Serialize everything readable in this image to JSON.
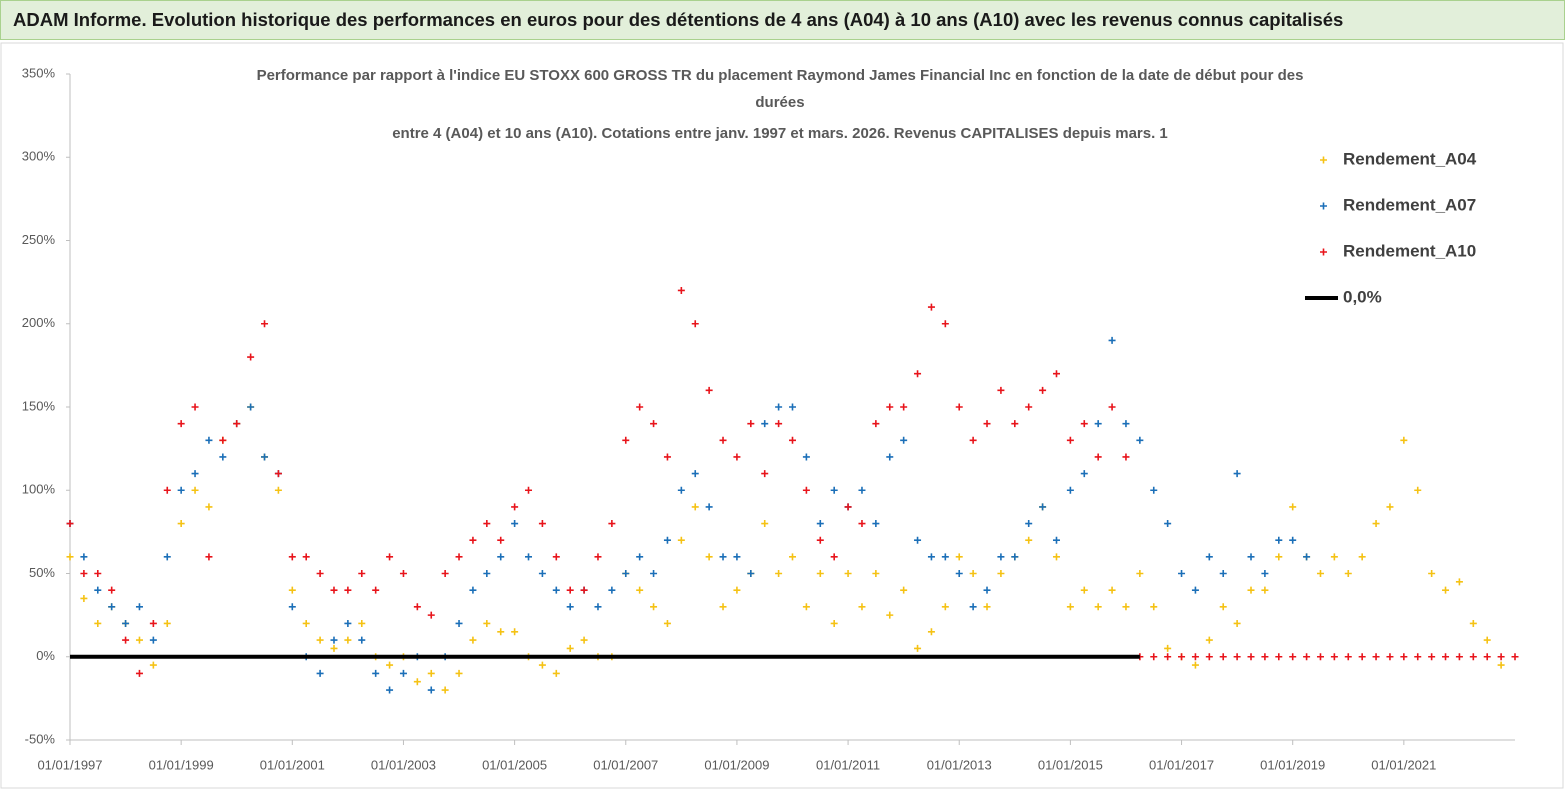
{
  "page_title": "ADAM Informe. Evolution historique des performances en euros pour des détentions de 4 ans (A04) à 10 ans (A10) avec les revenus connus capitalisés",
  "chart_data": {
    "type": "scatter",
    "title": [
      "Performance par rapport à l'indice EU STOXX 600 GROSS TR  du placement Raymond James Financial Inc en fonction de la date de début pour des",
      "durées",
      "entre 4 (A04) et 10 ans (A10).  Cotations entre janv. 1997 et mars. 2026. Revenus CAPITALISES depuis mars. 1"
    ],
    "xlim": [
      "01/01/1997",
      "01/01/2023"
    ],
    "xticks": [
      "01/01/1997",
      "01/01/1999",
      "01/01/2001",
      "01/01/2003",
      "01/01/2005",
      "01/01/2007",
      "01/01/2009",
      "01/01/2011",
      "01/01/2013",
      "01/01/2015",
      "01/01/2017",
      "01/01/2019",
      "01/01/2021"
    ],
    "ylim": [
      -50,
      350
    ],
    "yticks": [
      {
        "value": -50,
        "label": "-50%"
      },
      {
        "value": 0,
        "label": "0%"
      },
      {
        "value": 50,
        "label": "50%"
      },
      {
        "value": 100,
        "label": "100%"
      },
      {
        "value": 150,
        "label": "150%"
      },
      {
        "value": 200,
        "label": "200%"
      },
      {
        "value": 250,
        "label": "250%"
      },
      {
        "value": 300,
        "label": "300%"
      },
      {
        "value": 350,
        "label": "350%"
      }
    ],
    "series": [
      {
        "name": "Rendement_A04",
        "color": "#f5c214",
        "marker": "+",
        "x": [
          "01/01/1997",
          "01/04/1997",
          "01/07/1997",
          "01/10/1997",
          "01/01/1998",
          "01/04/1998",
          "01/07/1998",
          "01/10/1998",
          "01/01/1999",
          "01/04/1999",
          "01/07/1999",
          "01/10/1999",
          "01/01/2000",
          "01/04/2000",
          "01/07/2000",
          "01/10/2000",
          "01/01/2001",
          "01/04/2001",
          "01/07/2001",
          "01/10/2001",
          "01/01/2002",
          "01/04/2002",
          "01/07/2002",
          "01/10/2002",
          "01/01/2003",
          "01/04/2003",
          "01/07/2003",
          "01/10/2003",
          "01/01/2004",
          "01/04/2004",
          "01/07/2004",
          "01/10/2004",
          "01/01/2005",
          "01/04/2005",
          "01/07/2005",
          "01/10/2005",
          "01/01/2006",
          "01/04/2006",
          "01/07/2006",
          "01/10/2006",
          "01/01/2007",
          "01/04/2007",
          "01/07/2007",
          "01/10/2007",
          "01/01/2008",
          "01/04/2008",
          "01/07/2008",
          "01/10/2008",
          "01/01/2009",
          "01/04/2009",
          "01/07/2009",
          "01/10/2009",
          "01/01/2010",
          "01/04/2010",
          "01/07/2010",
          "01/10/2010",
          "01/01/2011",
          "01/04/2011",
          "01/07/2011",
          "01/10/2011",
          "01/01/2012",
          "01/04/2012",
          "01/07/2012",
          "01/10/2012",
          "01/01/2013",
          "01/04/2013",
          "01/07/2013",
          "01/10/2013",
          "01/01/2014",
          "01/04/2014",
          "01/07/2014",
          "01/10/2014",
          "01/01/2015",
          "01/04/2015",
          "01/07/2015",
          "01/10/2015",
          "01/01/2016",
          "01/04/2016",
          "01/07/2016",
          "01/10/2016",
          "01/01/2017",
          "01/04/2017",
          "01/07/2017",
          "01/10/2017",
          "01/01/2018",
          "01/04/2018",
          "01/07/2018",
          "01/10/2018",
          "01/01/2019",
          "01/04/2019",
          "01/07/2019",
          "01/10/2019",
          "01/01/2020",
          "01/04/2020",
          "01/07/2020",
          "01/10/2020",
          "01/01/2021",
          "01/04/2021",
          "01/07/2021",
          "01/10/2021",
          "01/01/2022",
          "01/04/2022",
          "01/07/2022",
          "01/10/2022"
        ],
        "values": [
          60,
          35,
          20,
          30,
          20,
          10,
          -5,
          20,
          80,
          100,
          90,
          130,
          140,
          150,
          120,
          100,
          40,
          20,
          10,
          5,
          10,
          20,
          0,
          -5,
          0,
          -15,
          -10,
          -20,
          -10,
          10,
          20,
          15,
          15,
          0,
          -5,
          -10,
          5,
          10,
          0,
          0,
          50,
          40,
          30,
          20,
          70,
          90,
          60,
          30,
          40,
          50,
          80,
          50,
          60,
          30,
          50,
          20,
          50,
          30,
          50,
          25,
          40,
          5,
          15,
          30,
          60,
          50,
          30,
          50,
          60,
          70,
          90,
          60,
          30,
          40,
          30,
          40,
          30,
          50,
          30,
          5,
          0,
          -5,
          10,
          30,
          20,
          40,
          40,
          60,
          90,
          60,
          50,
          60,
          50,
          60,
          80,
          90,
          130,
          100,
          50,
          40,
          45,
          20,
          10,
          -5
        ]
      },
      {
        "name": "Rendement_A07",
        "color": "#1b6fb8",
        "marker": "+",
        "x": [
          "01/01/1997",
          "01/04/1997",
          "01/07/1997",
          "01/10/1997",
          "01/01/1998",
          "01/04/1998",
          "01/07/1998",
          "01/10/1998",
          "01/01/1999",
          "01/04/1999",
          "01/07/1999",
          "01/10/1999",
          "01/01/2000",
          "01/04/2000",
          "01/07/2000",
          "01/10/2000",
          "01/01/2001",
          "01/04/2001",
          "01/07/2001",
          "01/10/2001",
          "01/01/2002",
          "01/04/2002",
          "01/07/2002",
          "01/10/2002",
          "01/01/2003",
          "01/04/2003",
          "01/07/2003",
          "01/10/2003",
          "01/01/2004",
          "01/04/2004",
          "01/07/2004",
          "01/10/2004",
          "01/01/2005",
          "01/04/2005",
          "01/07/2005",
          "01/10/2005",
          "01/01/2006",
          "01/04/2006",
          "01/07/2006",
          "01/10/2006",
          "01/01/2007",
          "01/04/2007",
          "01/07/2007",
          "01/10/2007",
          "01/01/2008",
          "01/04/2008",
          "01/07/2008",
          "01/10/2008",
          "01/01/2009",
          "01/04/2009",
          "01/07/2009",
          "01/10/2009",
          "01/01/2010",
          "01/04/2010",
          "01/07/2010",
          "01/10/2010",
          "01/01/2011",
          "01/04/2011",
          "01/07/2011",
          "01/10/2011",
          "01/01/2012",
          "01/04/2012",
          "01/07/2012",
          "01/10/2012",
          "01/01/2013",
          "01/04/2013",
          "01/07/2013",
          "01/10/2013",
          "01/01/2014",
          "01/04/2014",
          "01/07/2014",
          "01/10/2014",
          "01/01/2015",
          "01/04/2015",
          "01/07/2015",
          "01/10/2015",
          "01/01/2016",
          "01/04/2016",
          "01/07/2016",
          "01/10/2016",
          "01/01/2017",
          "01/04/2017",
          "01/07/2017",
          "01/10/2017",
          "01/01/2018",
          "01/04/2018",
          "01/07/2018",
          "01/10/2018",
          "01/01/2019",
          "01/04/2019"
        ],
        "values": [
          80,
          60,
          40,
          30,
          20,
          30,
          10,
          60,
          100,
          110,
          130,
          120,
          140,
          150,
          120,
          110,
          30,
          0,
          -10,
          10,
          20,
          10,
          -10,
          -20,
          -10,
          0,
          -20,
          0,
          20,
          40,
          50,
          60,
          80,
          60,
          50,
          40,
          30,
          40,
          30,
          40,
          50,
          60,
          50,
          70,
          100,
          110,
          90,
          60,
          60,
          50,
          140,
          150,
          150,
          120,
          80,
          100,
          90,
          100,
          80,
          120,
          130,
          70,
          60,
          60,
          50,
          30,
          40,
          60,
          60,
          80,
          90,
          70,
          100,
          110,
          140,
          190,
          140,
          130,
          100,
          80,
          50,
          40,
          60,
          50,
          110,
          60,
          50,
          70,
          70,
          60
        ]
      },
      {
        "name": "Rendement_A10",
        "color": "#e8141b",
        "marker": "+",
        "x": [
          "01/01/1997",
          "01/04/1997",
          "01/07/1997",
          "01/10/1997",
          "01/01/1998",
          "01/04/1998",
          "01/07/1998",
          "01/10/1998",
          "01/01/1999",
          "01/04/1999",
          "01/07/1999",
          "01/10/1999",
          "01/01/2000",
          "01/04/2000",
          "01/07/2000",
          "01/10/2000",
          "01/01/2001",
          "01/04/2001",
          "01/07/2001",
          "01/10/2001",
          "01/01/2002",
          "01/04/2002",
          "01/07/2002",
          "01/10/2002",
          "01/01/2003",
          "01/04/2003",
          "01/07/2003",
          "01/10/2003",
          "01/01/2004",
          "01/04/2004",
          "01/07/2004",
          "01/10/2004",
          "01/01/2005",
          "01/04/2005",
          "01/07/2005",
          "01/10/2005",
          "01/01/2006",
          "01/04/2006",
          "01/07/2006",
          "01/10/2006",
          "01/01/2007",
          "01/04/2007",
          "01/07/2007",
          "01/10/2007",
          "01/01/2008",
          "01/04/2008",
          "01/07/2008",
          "01/10/2008",
          "01/01/2009",
          "01/04/2009",
          "01/07/2009",
          "01/10/2009",
          "01/01/2010",
          "01/04/2010",
          "01/07/2010",
          "01/10/2010",
          "01/01/2011",
          "01/04/2011",
          "01/07/2011",
          "01/10/2011",
          "01/01/2012",
          "01/04/2012",
          "01/07/2012",
          "01/10/2012",
          "01/01/2013",
          "01/04/2013",
          "01/07/2013",
          "01/10/2013",
          "01/01/2014",
          "01/04/2014",
          "01/07/2014",
          "01/10/2014",
          "01/01/2015",
          "01/04/2015",
          "01/07/2015",
          "01/10/2015",
          "01/01/2016",
          "01/04/2016",
          "01/07/2016",
          "01/10/2016",
          "01/01/2017",
          "01/04/2017",
          "01/07/2017",
          "01/10/2017",
          "01/01/2018",
          "01/04/2018",
          "01/07/2018",
          "01/10/2018",
          "01/01/2019",
          "01/04/2019",
          "01/07/2019",
          "01/10/2019",
          "01/01/2020",
          "01/04/2020",
          "01/07/2020",
          "01/10/2020",
          "01/01/2021",
          "01/04/2021",
          "01/07/2021",
          "01/10/2021",
          "01/01/2022",
          "01/04/2022",
          "01/07/2022",
          "01/10/2022",
          "01/01/2023"
        ],
        "values": [
          80,
          50,
          50,
          40,
          10,
          -10,
          20,
          100,
          140,
          150,
          60,
          130,
          140,
          180,
          200,
          110,
          60,
          60,
          50,
          40,
          40,
          50,
          40,
          60,
          50,
          30,
          25,
          50,
          60,
          70,
          80,
          70,
          90,
          100,
          80,
          60,
          40,
          40,
          60,
          80,
          130,
          150,
          140,
          120,
          220,
          200,
          160,
          130,
          120,
          140,
          110,
          140,
          130,
          100,
          70,
          60,
          90,
          80,
          140,
          150,
          150,
          170,
          210,
          200,
          150,
          130,
          140,
          160,
          140,
          150,
          160,
          170,
          130,
          140,
          120,
          150,
          120,
          0,
          0,
          0,
          0,
          0,
          0,
          0,
          0,
          0,
          0,
          0,
          0,
          0,
          0,
          0,
          0,
          0,
          0,
          0,
          0,
          0,
          0,
          0,
          0,
          0,
          0,
          0,
          0
        ]
      },
      {
        "name": "0,0%",
        "color": "#000000",
        "marker": "line",
        "x": [
          "01/01/1997",
          "01/04/2016"
        ],
        "values": [
          0,
          0
        ]
      }
    ]
  }
}
